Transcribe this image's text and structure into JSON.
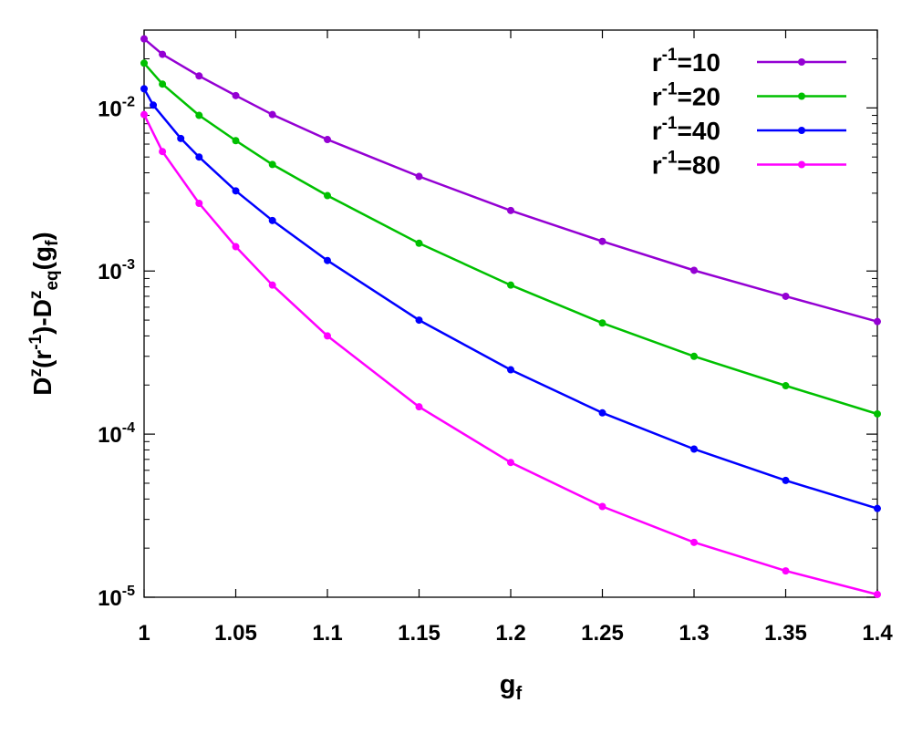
{
  "chart_data": {
    "type": "line",
    "title": "",
    "xlabel": {
      "main": "g",
      "sub": "f"
    },
    "ylabel": {
      "parts": [
        {
          "text": "D",
          "style": "normal"
        },
        {
          "text": "z",
          "style": "sup"
        },
        {
          "text": "(r",
          "style": "normal"
        },
        {
          "text": "-1",
          "style": "sup"
        },
        {
          "text": ")-D",
          "style": "normal"
        },
        {
          "text": "z",
          "style": "sup"
        },
        {
          "text": "eq",
          "style": "sub"
        },
        {
          "text": "(g",
          "style": "normal"
        },
        {
          "text": "f",
          "style": "sub"
        },
        {
          "text": ")",
          "style": "normal"
        }
      ]
    },
    "xlim": [
      1.0,
      1.4
    ],
    "ylim": [
      1e-05,
      0.03
    ],
    "yscale": "log",
    "grid": false,
    "legend_position": "top-right",
    "x_ticks": [
      {
        "value": 1.0,
        "label": "1"
      },
      {
        "value": 1.05,
        "label": "1.05"
      },
      {
        "value": 1.1,
        "label": "1.1"
      },
      {
        "value": 1.15,
        "label": "1.15"
      },
      {
        "value": 1.2,
        "label": "1.2"
      },
      {
        "value": 1.25,
        "label": "1.25"
      },
      {
        "value": 1.3,
        "label": "1.3"
      },
      {
        "value": 1.35,
        "label": "1.35"
      },
      {
        "value": 1.4,
        "label": "1.4"
      }
    ],
    "y_ticks": [
      {
        "value": 1e-05,
        "base": "10",
        "exp": "-5"
      },
      {
        "value": 0.0001,
        "base": "10",
        "exp": "-4"
      },
      {
        "value": 0.001,
        "base": "10",
        "exp": "-3"
      },
      {
        "value": 0.01,
        "base": "10",
        "exp": "-2"
      }
    ],
    "series": [
      {
        "name": "r⁻¹=10",
        "legend": {
          "base": "r",
          "sup": "-1",
          "rest": "=10"
        },
        "color": "#9400d3",
        "x": [
          1.0,
          1.01,
          1.03,
          1.05,
          1.07,
          1.1,
          1.15,
          1.2,
          1.25,
          1.3,
          1.35,
          1.4
        ],
        "y": [
          0.0265,
          0.0213,
          0.0157,
          0.0119,
          0.0091,
          0.0064,
          0.0038,
          0.00235,
          0.00152,
          0.00101,
          0.0007,
          0.00049
        ]
      },
      {
        "name": "r⁻¹=20",
        "legend": {
          "base": "r",
          "sup": "-1",
          "rest": "=20"
        },
        "color": "#00c000",
        "x": [
          1.0,
          1.01,
          1.03,
          1.05,
          1.07,
          1.1,
          1.15,
          1.2,
          1.25,
          1.3,
          1.35,
          1.4
        ],
        "y": [
          0.0188,
          0.014,
          0.009,
          0.0063,
          0.0045,
          0.0029,
          0.00148,
          0.00082,
          0.00048,
          0.0003,
          0.000198,
          0.000133
        ]
      },
      {
        "name": "r⁻¹=40",
        "legend": {
          "base": "r",
          "sup": "-1",
          "rest": "=40"
        },
        "color": "#0000ff",
        "x": [
          1.0,
          1.005,
          1.02,
          1.03,
          1.05,
          1.07,
          1.1,
          1.15,
          1.2,
          1.25,
          1.3,
          1.35,
          1.4
        ],
        "y": [
          0.0131,
          0.0104,
          0.0065,
          0.005,
          0.0031,
          0.00204,
          0.00116,
          0.0005,
          0.000248,
          0.000135,
          8.1e-05,
          5.2e-05,
          3.5e-05
        ]
      },
      {
        "name": "r⁻¹=80",
        "legend": {
          "base": "r",
          "sup": "-1",
          "rest": "=80"
        },
        "color": "#ff00ff",
        "x": [
          1.0,
          1.01,
          1.03,
          1.05,
          1.07,
          1.1,
          1.15,
          1.2,
          1.25,
          1.3,
          1.35,
          1.4
        ],
        "y": [
          0.0091,
          0.0054,
          0.0026,
          0.00141,
          0.00082,
          0.0004,
          0.000147,
          6.7e-05,
          3.6e-05,
          2.17e-05,
          1.45e-05,
          1.04e-05
        ]
      }
    ]
  }
}
